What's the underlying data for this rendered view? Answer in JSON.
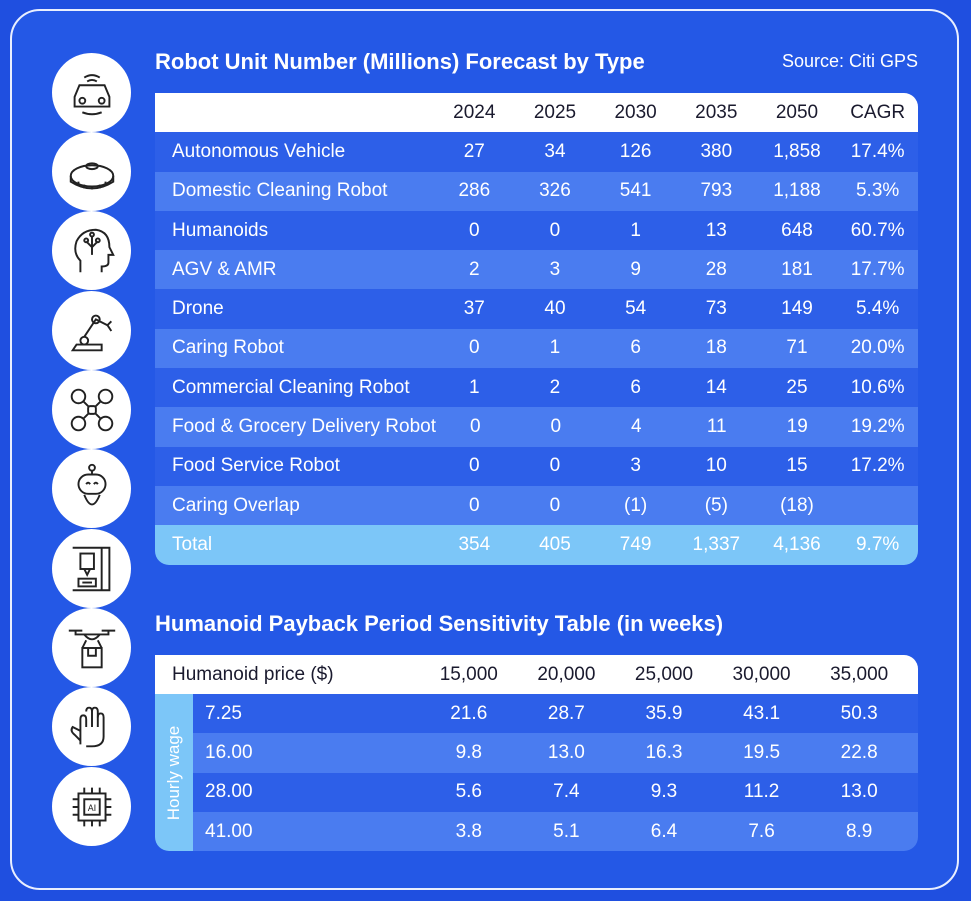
{
  "source": "Source: Citi GPS",
  "icons": [
    "autonomous-vehicle-icon",
    "robot-vacuum-icon",
    "humanoid-head-icon",
    "robotic-arm-icon",
    "drone-icon",
    "service-robot-icon",
    "3d-printer-icon",
    "delivery-drone-icon",
    "robot-hand-icon",
    "ai-chip-icon"
  ],
  "table1": {
    "title": "Robot Unit Number (Millions) Forecast by Type",
    "columns": [
      "2024",
      "2025",
      "2030",
      "2035",
      "2050",
      "CAGR"
    ],
    "rows": [
      {
        "label": "Autonomous Vehicle",
        "values": [
          "27",
          "34",
          "126",
          "380",
          "1,858",
          "17.4%"
        ]
      },
      {
        "label": "Domestic Cleaning Robot",
        "values": [
          "286",
          "326",
          "541",
          "793",
          "1,188",
          "5.3%"
        ]
      },
      {
        "label": "Humanoids",
        "values": [
          "0",
          "0",
          "1",
          "13",
          "648",
          "60.7%"
        ]
      },
      {
        "label": "AGV & AMR",
        "values": [
          "2",
          "3",
          "9",
          "28",
          "181",
          "17.7%"
        ]
      },
      {
        "label": "Drone",
        "values": [
          "37",
          "40",
          "54",
          "73",
          "149",
          "5.4%"
        ]
      },
      {
        "label": "Caring Robot",
        "values": [
          "0",
          "1",
          "6",
          "18",
          "71",
          "20.0%"
        ]
      },
      {
        "label": "Commercial Cleaning Robot",
        "values": [
          "1",
          "2",
          "6",
          "14",
          "25",
          "10.6%"
        ]
      },
      {
        "label": "Food & Grocery Delivery Robot",
        "values": [
          "0",
          "0",
          "4",
          "11",
          "19",
          "19.2%"
        ]
      },
      {
        "label": "Food Service Robot",
        "values": [
          "0",
          "0",
          "3",
          "10",
          "15",
          "17.2%"
        ]
      },
      {
        "label": "Caring Overlap",
        "values": [
          "0",
          "0",
          "(1)",
          "(5)",
          "(18)",
          ""
        ]
      }
    ],
    "total": {
      "label": "Total",
      "values": [
        "354",
        "405",
        "749",
        "1,337",
        "4,136",
        "9.7%"
      ]
    }
  },
  "table2": {
    "title": "Humanoid Payback Period Sensitivity Table (in weeks)",
    "corner": "Humanoid price ($)",
    "row_axis_label": "Hourly wage",
    "columns": [
      "15,000",
      "20,000",
      "25,000",
      "30,000",
      "35,000"
    ],
    "rows": [
      {
        "label": "7.25",
        "values": [
          "21.6",
          "28.7",
          "35.9",
          "43.1",
          "50.3"
        ]
      },
      {
        "label": "16.00",
        "values": [
          "9.8",
          "13.0",
          "16.3",
          "19.5",
          "22.8"
        ]
      },
      {
        "label": "28.00",
        "values": [
          "5.6",
          "7.4",
          "9.3",
          "11.2",
          "13.0"
        ]
      },
      {
        "label": "41.00",
        "values": [
          "3.8",
          "5.1",
          "6.4",
          "7.6",
          "8.9"
        ]
      }
    ]
  },
  "chart_data": [
    {
      "type": "table",
      "title": "Robot Unit Number (Millions) Forecast by Type",
      "columns": [
        "2024",
        "2025",
        "2030",
        "2035",
        "2050",
        "CAGR"
      ],
      "rows": [
        [
          "Autonomous Vehicle",
          27,
          34,
          126,
          380,
          1858,
          "17.4%"
        ],
        [
          "Domestic Cleaning Robot",
          286,
          326,
          541,
          793,
          1188,
          "5.3%"
        ],
        [
          "Humanoids",
          0,
          0,
          1,
          13,
          648,
          "60.7%"
        ],
        [
          "AGV & AMR",
          2,
          3,
          9,
          28,
          181,
          "17.7%"
        ],
        [
          "Drone",
          37,
          40,
          54,
          73,
          149,
          "5.4%"
        ],
        [
          "Caring Robot",
          0,
          1,
          6,
          18,
          71,
          "20.0%"
        ],
        [
          "Commercial Cleaning Robot",
          1,
          2,
          6,
          14,
          25,
          "10.6%"
        ],
        [
          "Food & Grocery Delivery Robot",
          0,
          0,
          4,
          11,
          19,
          "19.2%"
        ],
        [
          "Food Service Robot",
          0,
          0,
          3,
          10,
          15,
          "17.2%"
        ],
        [
          "Caring Overlap",
          0,
          0,
          -1,
          -5,
          -18,
          ""
        ],
        [
          "Total",
          354,
          405,
          749,
          1337,
          4136,
          "9.7%"
        ]
      ]
    },
    {
      "type": "table",
      "title": "Humanoid Payback Period Sensitivity Table (in weeks)",
      "columns": [
        "15,000",
        "20,000",
        "25,000",
        "30,000",
        "35,000"
      ],
      "rows": [
        [
          "7.25",
          21.6,
          28.7,
          35.9,
          43.1,
          50.3
        ],
        [
          "16.00",
          9.8,
          13.0,
          16.3,
          19.5,
          22.8
        ],
        [
          "28.00",
          5.6,
          7.4,
          9.3,
          11.2,
          13.0
        ],
        [
          "41.00",
          3.8,
          5.1,
          6.4,
          7.6,
          8.9
        ]
      ]
    }
  ]
}
